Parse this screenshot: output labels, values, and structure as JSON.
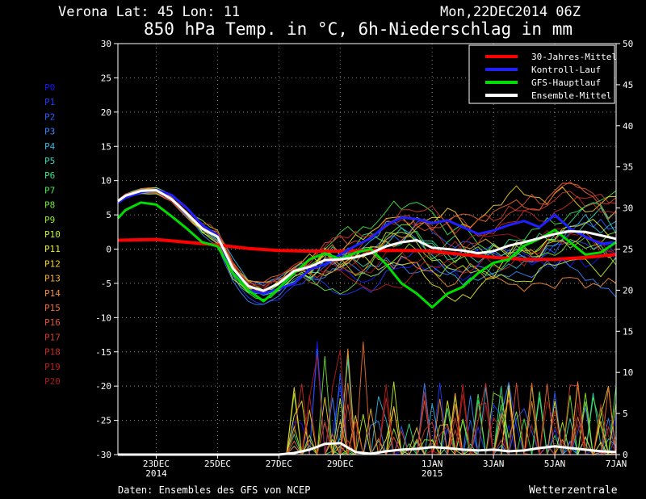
{
  "header": {
    "location": "Verona   Lat: 45 Lon: 11",
    "datetime": "Mon,22DEC2014 06Z",
    "title": "850 hPa Temp. in °C, 6h-Niederschlag in mm"
  },
  "footer": {
    "source": "Daten: Ensembles des GFS von NCEP",
    "brand": "Wetterzentrale"
  },
  "members": [
    "P0",
    "P1",
    "P2",
    "P3",
    "P4",
    "P5",
    "P6",
    "P7",
    "P8",
    "P9",
    "P10",
    "P11",
    "P12",
    "P13",
    "P14",
    "P15",
    "P16",
    "P17",
    "P18",
    "P19",
    "P20"
  ],
  "member_colors": [
    "#1414ff",
    "#1e3cff",
    "#2a60ff",
    "#3a86ff",
    "#31b7e6",
    "#2fd7b6",
    "#2ee68a",
    "#45e84f",
    "#6be632",
    "#95e82a",
    "#c0ee24",
    "#e8ee2a",
    "#f2d02a",
    "#f4b02e",
    "#f58e32",
    "#f06c30",
    "#e05032",
    "#d23a2c",
    "#c62a26",
    "#b81e20",
    "#a81818"
  ],
  "chart_data": {
    "type": "line",
    "x_ticks": [
      {
        "label": "23DEC",
        "sub": "2014",
        "day": 1
      },
      {
        "label": "25DEC",
        "sub": "",
        "day": 3
      },
      {
        "label": "27DEC",
        "sub": "",
        "day": 5
      },
      {
        "label": "29DEC",
        "sub": "",
        "day": 7
      },
      {
        "label": "1JAN",
        "sub": "2015",
        "day": 10
      },
      {
        "label": "3JAN",
        "sub": "",
        "day": 12
      },
      {
        "label": "5JAN",
        "sub": "",
        "day": 14
      },
      {
        "label": "7JAN",
        "sub": "",
        "day": 16
      }
    ],
    "x_range_days": [
      -0.25,
      16
    ],
    "y_left": {
      "min": -30,
      "max": 30,
      "ticks": [
        30,
        25,
        20,
        15,
        10,
        5,
        0,
        -5,
        -10,
        -15,
        -20,
        -25,
        -30
      ]
    },
    "y_right": {
      "min": 0,
      "max": 50,
      "ticks": [
        50,
        45,
        40,
        35,
        30,
        25,
        20,
        15,
        10,
        5,
        0
      ]
    },
    "grid": true,
    "legend_position": "top-right",
    "legend": [
      {
        "name": "30-Jahres-Mittel",
        "color": "#ff0000"
      },
      {
        "name": "Kontroll-Lauf",
        "color": "#2020ff"
      },
      {
        "name": "GFS-Hauptlauf",
        "color": "#00dd00"
      },
      {
        "name": "Ensemble-Mittel",
        "color": "#ffffff"
      }
    ],
    "series": [
      {
        "name": "30-Jahres-Mittel",
        "color": "#ff0000",
        "width": 4,
        "axis": "left",
        "days": [
          -0.25,
          1,
          2,
          3,
          4,
          5,
          6,
          7,
          8,
          9,
          10,
          11,
          12,
          13,
          14,
          15,
          16
        ],
        "values": [
          1.3,
          1.4,
          1.0,
          0.6,
          0.1,
          -0.2,
          -0.3,
          -0.3,
          -0.2,
          -0.2,
          -0.3,
          -0.8,
          -1.2,
          -1.5,
          -1.5,
          -1.2,
          -0.8
        ]
      },
      {
        "name": "Kontroll-Lauf",
        "color": "#2020ff",
        "width": 3,
        "axis": "left",
        "days": [
          -0.25,
          0,
          0.5,
          1,
          1.5,
          2,
          2.5,
          3,
          3.5,
          4,
          4.5,
          5,
          5.5,
          6,
          6.5,
          7,
          7.5,
          8,
          8.5,
          9,
          9.5,
          10,
          10.5,
          11,
          11.5,
          12,
          12.5,
          13,
          13.5,
          14,
          14.5,
          15,
          15.5,
          16
        ],
        "values": [
          6.8,
          7.5,
          8.3,
          8.7,
          7.9,
          6.0,
          3.5,
          2.0,
          -3.5,
          -6.0,
          -6.5,
          -5.8,
          -5.0,
          -3.0,
          -2.2,
          -0.8,
          0.5,
          1.6,
          3.5,
          4.6,
          4.4,
          3.8,
          4.2,
          3.2,
          2.2,
          2.7,
          3.5,
          4.1,
          3.2,
          5.0,
          3.0,
          1.8,
          0.8,
          1.0
        ]
      },
      {
        "name": "GFS-Hauptlauf",
        "color": "#00dd00",
        "width": 3,
        "axis": "left",
        "days": [
          -0.25,
          0,
          0.5,
          1,
          1.5,
          2,
          2.5,
          3,
          3.5,
          4,
          4.5,
          5,
          5.5,
          6,
          6.5,
          7,
          7.5,
          8,
          8.5,
          9,
          9.5,
          10,
          10.5,
          11,
          11.5,
          12,
          12.5,
          13,
          13.5,
          14,
          14.5,
          15,
          15.5,
          16
        ],
        "values": [
          4.5,
          5.7,
          6.8,
          6.5,
          4.8,
          3.0,
          1.0,
          0.4,
          -3.5,
          -6.0,
          -7.6,
          -5.7,
          -3.5,
          -1.5,
          -0.6,
          -1.5,
          -0.5,
          0.0,
          -2.2,
          -5.0,
          -6.5,
          -8.5,
          -6.5,
          -5.5,
          -3.5,
          -2.0,
          -1.5,
          0.5,
          1.5,
          2.8,
          1.0,
          -0.8,
          -0.5,
          1.0
        ]
      },
      {
        "name": "Ensemble-Mittel",
        "color": "#ffffff",
        "width": 3,
        "axis": "left",
        "days": [
          -0.25,
          0,
          0.5,
          1,
          1.5,
          2,
          2.5,
          3,
          3.5,
          4,
          4.5,
          5,
          5.5,
          6,
          6.5,
          7,
          7.5,
          8,
          8.5,
          9,
          9.5,
          10,
          10.5,
          11,
          11.5,
          12,
          12.5,
          13,
          13.5,
          14,
          14.5,
          15,
          15.5,
          16
        ],
        "values": [
          7.0,
          7.8,
          8.5,
          8.6,
          7.3,
          5.2,
          3.0,
          1.8,
          -2.8,
          -5.4,
          -6.1,
          -5.0,
          -3.2,
          -2.6,
          -1.6,
          -1.5,
          -1.2,
          -0.6,
          0.4,
          1.0,
          1.3,
          0.2,
          0.0,
          -0.2,
          -0.6,
          -0.3,
          0.5,
          1.0,
          1.6,
          2.2,
          2.6,
          2.5,
          2.0,
          1.5
        ]
      },
      {
        "name": "Ensemble-Mittel Niederschlag",
        "color": "#ffffff",
        "width": 3,
        "axis": "right",
        "days": [
          -0.25,
          1,
          2,
          3,
          4,
          5,
          5.5,
          6,
          6.5,
          7,
          7.5,
          8,
          8.5,
          9,
          9.5,
          10,
          10.5,
          11,
          11.5,
          12,
          12.5,
          13,
          13.5,
          14,
          14.5,
          15,
          15.5,
          16
        ],
        "values": [
          0,
          0,
          0,
          0,
          0,
          0,
          0.2,
          0.6,
          1.3,
          1.4,
          0.3,
          0.1,
          0.4,
          0.6,
          0.7,
          0.9,
          0.8,
          0.6,
          0.5,
          0.6,
          0.4,
          0.5,
          0.8,
          1.0,
          0.8,
          0.6,
          0.4,
          0.3
        ]
      }
    ]
  }
}
